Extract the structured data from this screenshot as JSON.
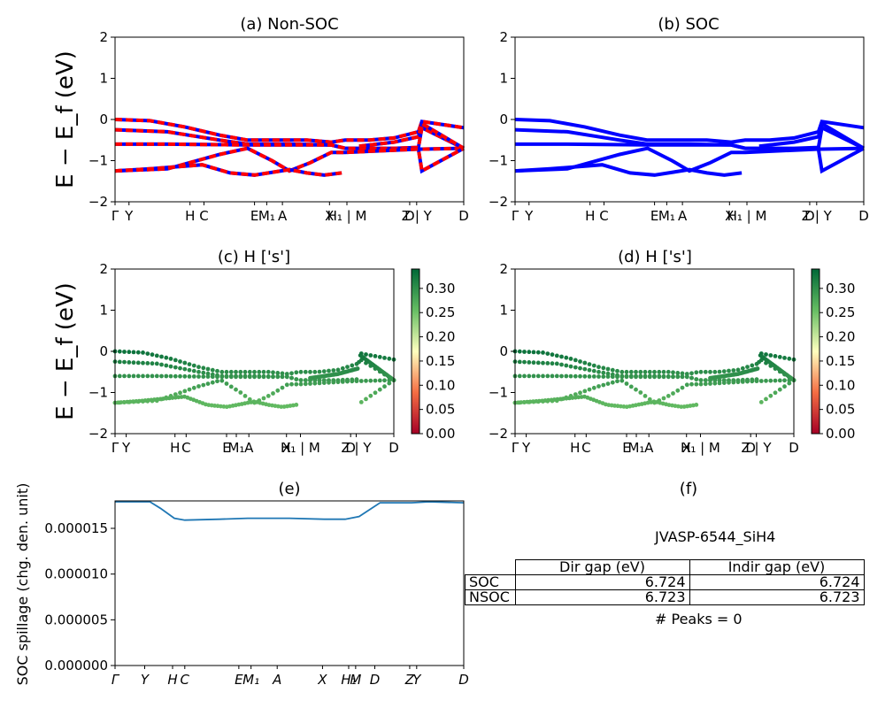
{
  "chart_data": [
    {
      "id": "a",
      "type": "line",
      "title": "(a) Non-SOC",
      "ylabel": "E − E_f (eV)",
      "ylim": [
        -2,
        2
      ],
      "yticks": [
        "−2",
        "−1",
        "0",
        "1",
        "2"
      ],
      "xticks": [
        "Γ",
        "Y",
        "H",
        "C",
        "E",
        "M₁",
        "A",
        "X",
        "H₁ | M",
        "D",
        "Z | Y",
        "D"
      ],
      "series": [
        {
          "color": "#0000ff",
          "values": [
            [
              0,
              0.0
            ],
            [
              0.1,
              -0.03
            ],
            [
              0.2,
              -0.18
            ],
            [
              0.3,
              -0.38
            ],
            [
              0.38,
              -0.5
            ],
            [
              0.45,
              -0.5
            ],
            [
              0.55,
              -0.5
            ],
            [
              0.62,
              -0.55
            ],
            [
              0.66,
              -0.5
            ],
            [
              0.73,
              -0.5
            ],
            [
              0.8,
              -0.45
            ],
            [
              0.87,
              -0.3
            ],
            [
              0.88,
              -0.05
            ],
            [
              1.0,
              -0.2
            ]
          ]
        },
        {
          "color": "#0000ff",
          "values": [
            [
              0,
              -0.25
            ],
            [
              0.15,
              -0.3
            ],
            [
              0.3,
              -0.5
            ],
            [
              0.38,
              -0.6
            ],
            [
              0.5,
              -0.6
            ],
            [
              0.62,
              -0.62
            ],
            [
              0.66,
              -0.7
            ],
            [
              0.8,
              -0.7
            ],
            [
              0.87,
              -0.68
            ],
            [
              0.88,
              -0.2
            ],
            [
              1.0,
              -0.7
            ]
          ]
        },
        {
          "color": "#0000ff",
          "values": [
            [
              0,
              -0.6
            ],
            [
              0.15,
              -0.6
            ],
            [
              0.38,
              -0.62
            ],
            [
              0.5,
              -0.62
            ],
            [
              0.62,
              -0.62
            ],
            [
              0.66,
              -0.7
            ],
            [
              0.87,
              -0.72
            ],
            [
              0.88,
              -0.72
            ],
            [
              1.0,
              -0.7
            ]
          ]
        },
        {
          "color": "#0000ff",
          "values": [
            [
              0,
              -1.25
            ],
            [
              0.15,
              -1.2
            ],
            [
              0.3,
              -0.85
            ],
            [
              0.38,
              -0.7
            ],
            [
              0.45,
              -1.0
            ],
            [
              0.5,
              -1.25
            ],
            [
              0.56,
              -1.05
            ],
            [
              0.62,
              -0.8
            ],
            [
              0.66,
              -0.8
            ],
            [
              0.87,
              -0.72
            ],
            [
              0.88,
              -1.25
            ],
            [
              1.0,
              -0.7
            ]
          ]
        },
        {
          "color": "#0000ff",
          "values": [
            [
              0,
              -1.25
            ],
            [
              0.1,
              -1.2
            ],
            [
              0.25,
              -1.1
            ],
            [
              0.33,
              -1.3
            ],
            [
              0.4,
              -1.35
            ],
            [
              0.5,
              -1.22
            ],
            [
              0.55,
              -1.3
            ],
            [
              0.6,
              -1.35
            ],
            [
              0.65,
              -1.3
            ]
          ]
        },
        {
          "color": "#0000ff",
          "values": [
            [
              0.7,
              -0.65
            ],
            [
              0.8,
              -0.55
            ],
            [
              0.87,
              -0.42
            ],
            [
              0.88,
              -0.1
            ],
            [
              1.0,
              -0.7
            ]
          ]
        }
      ],
      "overlay_color": "#ff0000"
    },
    {
      "id": "b",
      "type": "line",
      "title": "(b) SOC",
      "ylim": [
        -2,
        2
      ],
      "yticks": [
        "−2",
        "−1",
        "0",
        "1",
        "2"
      ],
      "xticks": [
        "Γ",
        "Y",
        "H",
        "C",
        "E",
        "M₁",
        "A",
        "X",
        "H₁ | M",
        "D",
        "Z | Y",
        "D"
      ]
    },
    {
      "id": "c",
      "type": "scatter",
      "title": "(c)  H ['s']",
      "ylabel": "E − E_f (eV)",
      "ylim": [
        -2,
        2
      ],
      "yticks": [
        "−2",
        "−1",
        "0",
        "1",
        "2"
      ],
      "xticks": [
        "Γ",
        "Y",
        "H",
        "C",
        "E",
        "M₁",
        "A",
        "X",
        "H₁ | M",
        "D",
        "Z | Y",
        "D"
      ],
      "colorbar": {
        "ticks": [
          "0.00",
          "0.05",
          "0.10",
          "0.15",
          "0.20",
          "0.25",
          "0.30"
        ],
        "min": 0,
        "max": 0.34
      }
    },
    {
      "id": "d",
      "type": "scatter",
      "title": "(d) H ['s']",
      "ylim": [
        -2,
        2
      ],
      "yticks": [
        "−2",
        "−1",
        "0",
        "1",
        "2"
      ],
      "xticks": [
        "Γ",
        "Y",
        "H",
        "C",
        "E",
        "M₁",
        "A",
        "X",
        "H₁ | M",
        "D",
        "Z | Y",
        "D"
      ],
      "colorbar": {
        "ticks": [
          "0.00",
          "0.05",
          "0.10",
          "0.15",
          "0.20",
          "0.25",
          "0.30"
        ],
        "min": 0,
        "max": 0.34
      }
    },
    {
      "id": "e",
      "type": "line",
      "title": "(e)",
      "ylabel": "SOC spillage (chg. den. unit)",
      "ylim": [
        0,
        1.8e-05
      ],
      "yticks": [
        "0.000000",
        "0.000005",
        "0.000010",
        "0.000015"
      ],
      "xticks": [
        "Γ",
        "Y",
        "H",
        "C",
        "E",
        "M₁",
        "A",
        "X",
        "H₁",
        "M",
        "D",
        "Z",
        "Y",
        "D"
      ],
      "series": [
        {
          "color": "#1f77b4",
          "values": [
            [
              0,
              1.79e-05
            ],
            [
              0.1,
              1.79e-05
            ],
            [
              0.13,
              1.72e-05
            ],
            [
              0.17,
              1.61e-05
            ],
            [
              0.2,
              1.59e-05
            ],
            [
              0.3,
              1.6e-05
            ],
            [
              0.38,
              1.61e-05
            ],
            [
              0.45,
              1.61e-05
            ],
            [
              0.5,
              1.61e-05
            ],
            [
              0.6,
              1.6e-05
            ],
            [
              0.66,
              1.6e-05
            ],
            [
              0.7,
              1.63e-05
            ],
            [
              0.74,
              1.73e-05
            ],
            [
              0.76,
              1.78e-05
            ],
            [
              0.85,
              1.78e-05
            ],
            [
              0.9,
              1.79e-05
            ],
            [
              1.0,
              1.78e-05
            ]
          ]
        }
      ]
    }
  ],
  "panel_f": {
    "title": "(f)",
    "jid": "JVASP-6544_SiH4",
    "table": {
      "headers": [
        "Dir gap (eV)",
        "Indir gap (eV)"
      ],
      "rows": [
        {
          "label": "SOC",
          "dir": "6.724",
          "indir": "6.724"
        },
        {
          "label": "NSOC",
          "dir": "6.723",
          "indir": "6.723"
        }
      ]
    },
    "peaks": "# Peaks = 0"
  }
}
